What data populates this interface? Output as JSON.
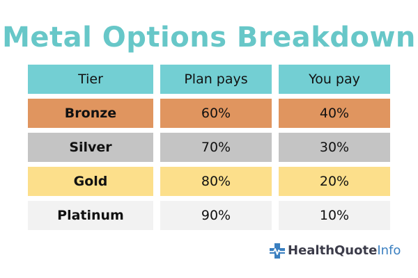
{
  "title": "Metal Options Breakdown",
  "table": {
    "headers": [
      "Tier",
      "Plan pays",
      "You pay"
    ],
    "header_color": "#73cfd3",
    "rows": [
      {
        "tier": "Bronze",
        "plan_pays": "60%",
        "you_pay": "40%",
        "color": "#e0955f"
      },
      {
        "tier": "Silver",
        "plan_pays": "70%",
        "you_pay": "30%",
        "color": "#c4c4c4"
      },
      {
        "tier": "Gold",
        "plan_pays": "80%",
        "you_pay": "20%",
        "color": "#fcdf8b"
      },
      {
        "tier": "Platinum",
        "plan_pays": "90%",
        "you_pay": "10%",
        "color": "#f2f2f2"
      }
    ]
  },
  "logo": {
    "icon": "medical-cross-heartbeat-icon",
    "brand": "HealthQuote",
    "suffix": "Info",
    "icon_color": "#3a7fc0"
  }
}
